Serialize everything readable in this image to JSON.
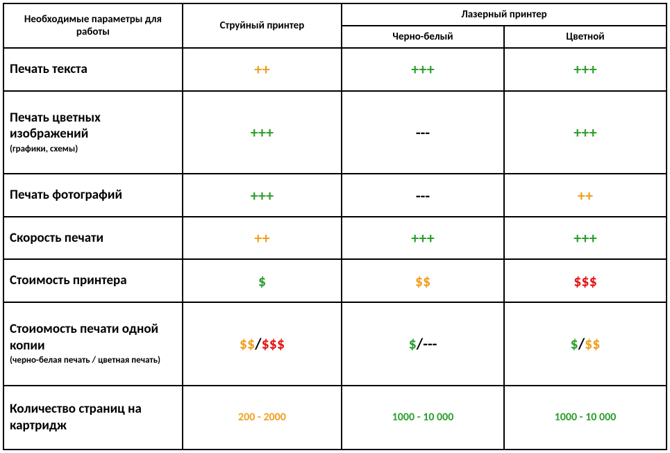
{
  "colors": {
    "green": "#2e9f2e",
    "orange": "#f0a020",
    "red": "#e31818",
    "black": "#000000"
  },
  "header": {
    "params": "Необходимые параметры для работы",
    "inkjet": "Струйный принтер",
    "laser": "Лазерный принтер",
    "bw": "Черно-белый",
    "color": "Цветной"
  },
  "rows": [
    {
      "label": "Печать текста",
      "cells": [
        [
          {
            "text": "++",
            "color": "orange"
          }
        ],
        [
          {
            "text": "+++",
            "color": "green"
          }
        ],
        [
          {
            "text": "+++",
            "color": "green"
          }
        ]
      ]
    },
    {
      "label": "Печать цветных изображений",
      "sublabel": "(графики, схемы)",
      "cells": [
        [
          {
            "text": "+++",
            "color": "green"
          }
        ],
        [
          {
            "text": "---",
            "color": "black"
          }
        ],
        [
          {
            "text": "+++",
            "color": "green"
          }
        ]
      ]
    },
    {
      "label": "Печать фотографий",
      "cells": [
        [
          {
            "text": "+++",
            "color": "green"
          }
        ],
        [
          {
            "text": "---",
            "color": "black"
          }
        ],
        [
          {
            "text": "++",
            "color": "orange"
          }
        ]
      ]
    },
    {
      "label": "Скорость печати",
      "cells": [
        [
          {
            "text": "++",
            "color": "orange"
          }
        ],
        [
          {
            "text": "+++",
            "color": "green"
          }
        ],
        [
          {
            "text": "+++",
            "color": "green"
          }
        ]
      ]
    },
    {
      "label": "Стоимость принтера",
      "cells": [
        [
          {
            "text": "$",
            "color": "green"
          }
        ],
        [
          {
            "text": "$$",
            "color": "orange"
          }
        ],
        [
          {
            "text": "$$$",
            "color": "red"
          }
        ]
      ]
    },
    {
      "label": "Стоиомость печати одной копии",
      "sublabel": "(черно-белая печать / цветная печать)",
      "cells": [
        [
          {
            "text": "$$",
            "color": "orange"
          },
          {
            "text": "/",
            "color": "black"
          },
          {
            "text": "$$$",
            "color": "red"
          }
        ],
        [
          {
            "text": "$",
            "color": "green"
          },
          {
            "text": "/",
            "color": "black"
          },
          {
            "text": "---",
            "color": "black"
          }
        ],
        [
          {
            "text": "$",
            "color": "green"
          },
          {
            "text": "/",
            "color": "black"
          },
          {
            "text": "$$",
            "color": "orange"
          }
        ]
      ]
    },
    {
      "label": "Количество страниц на картридж",
      "range": true,
      "cells": [
        [
          {
            "text": "200 - 2000",
            "color": "orange"
          }
        ],
        [
          {
            "text": "1000 - 10 000",
            "color": "green"
          }
        ],
        [
          {
            "text": "1000 - 10 000",
            "color": "green"
          }
        ]
      ]
    }
  ],
  "layout": {
    "col_widths_pct": [
      27,
      24,
      24.5,
      24.5
    ],
    "header_row_h": 30,
    "subheader_row_h": 30
  }
}
